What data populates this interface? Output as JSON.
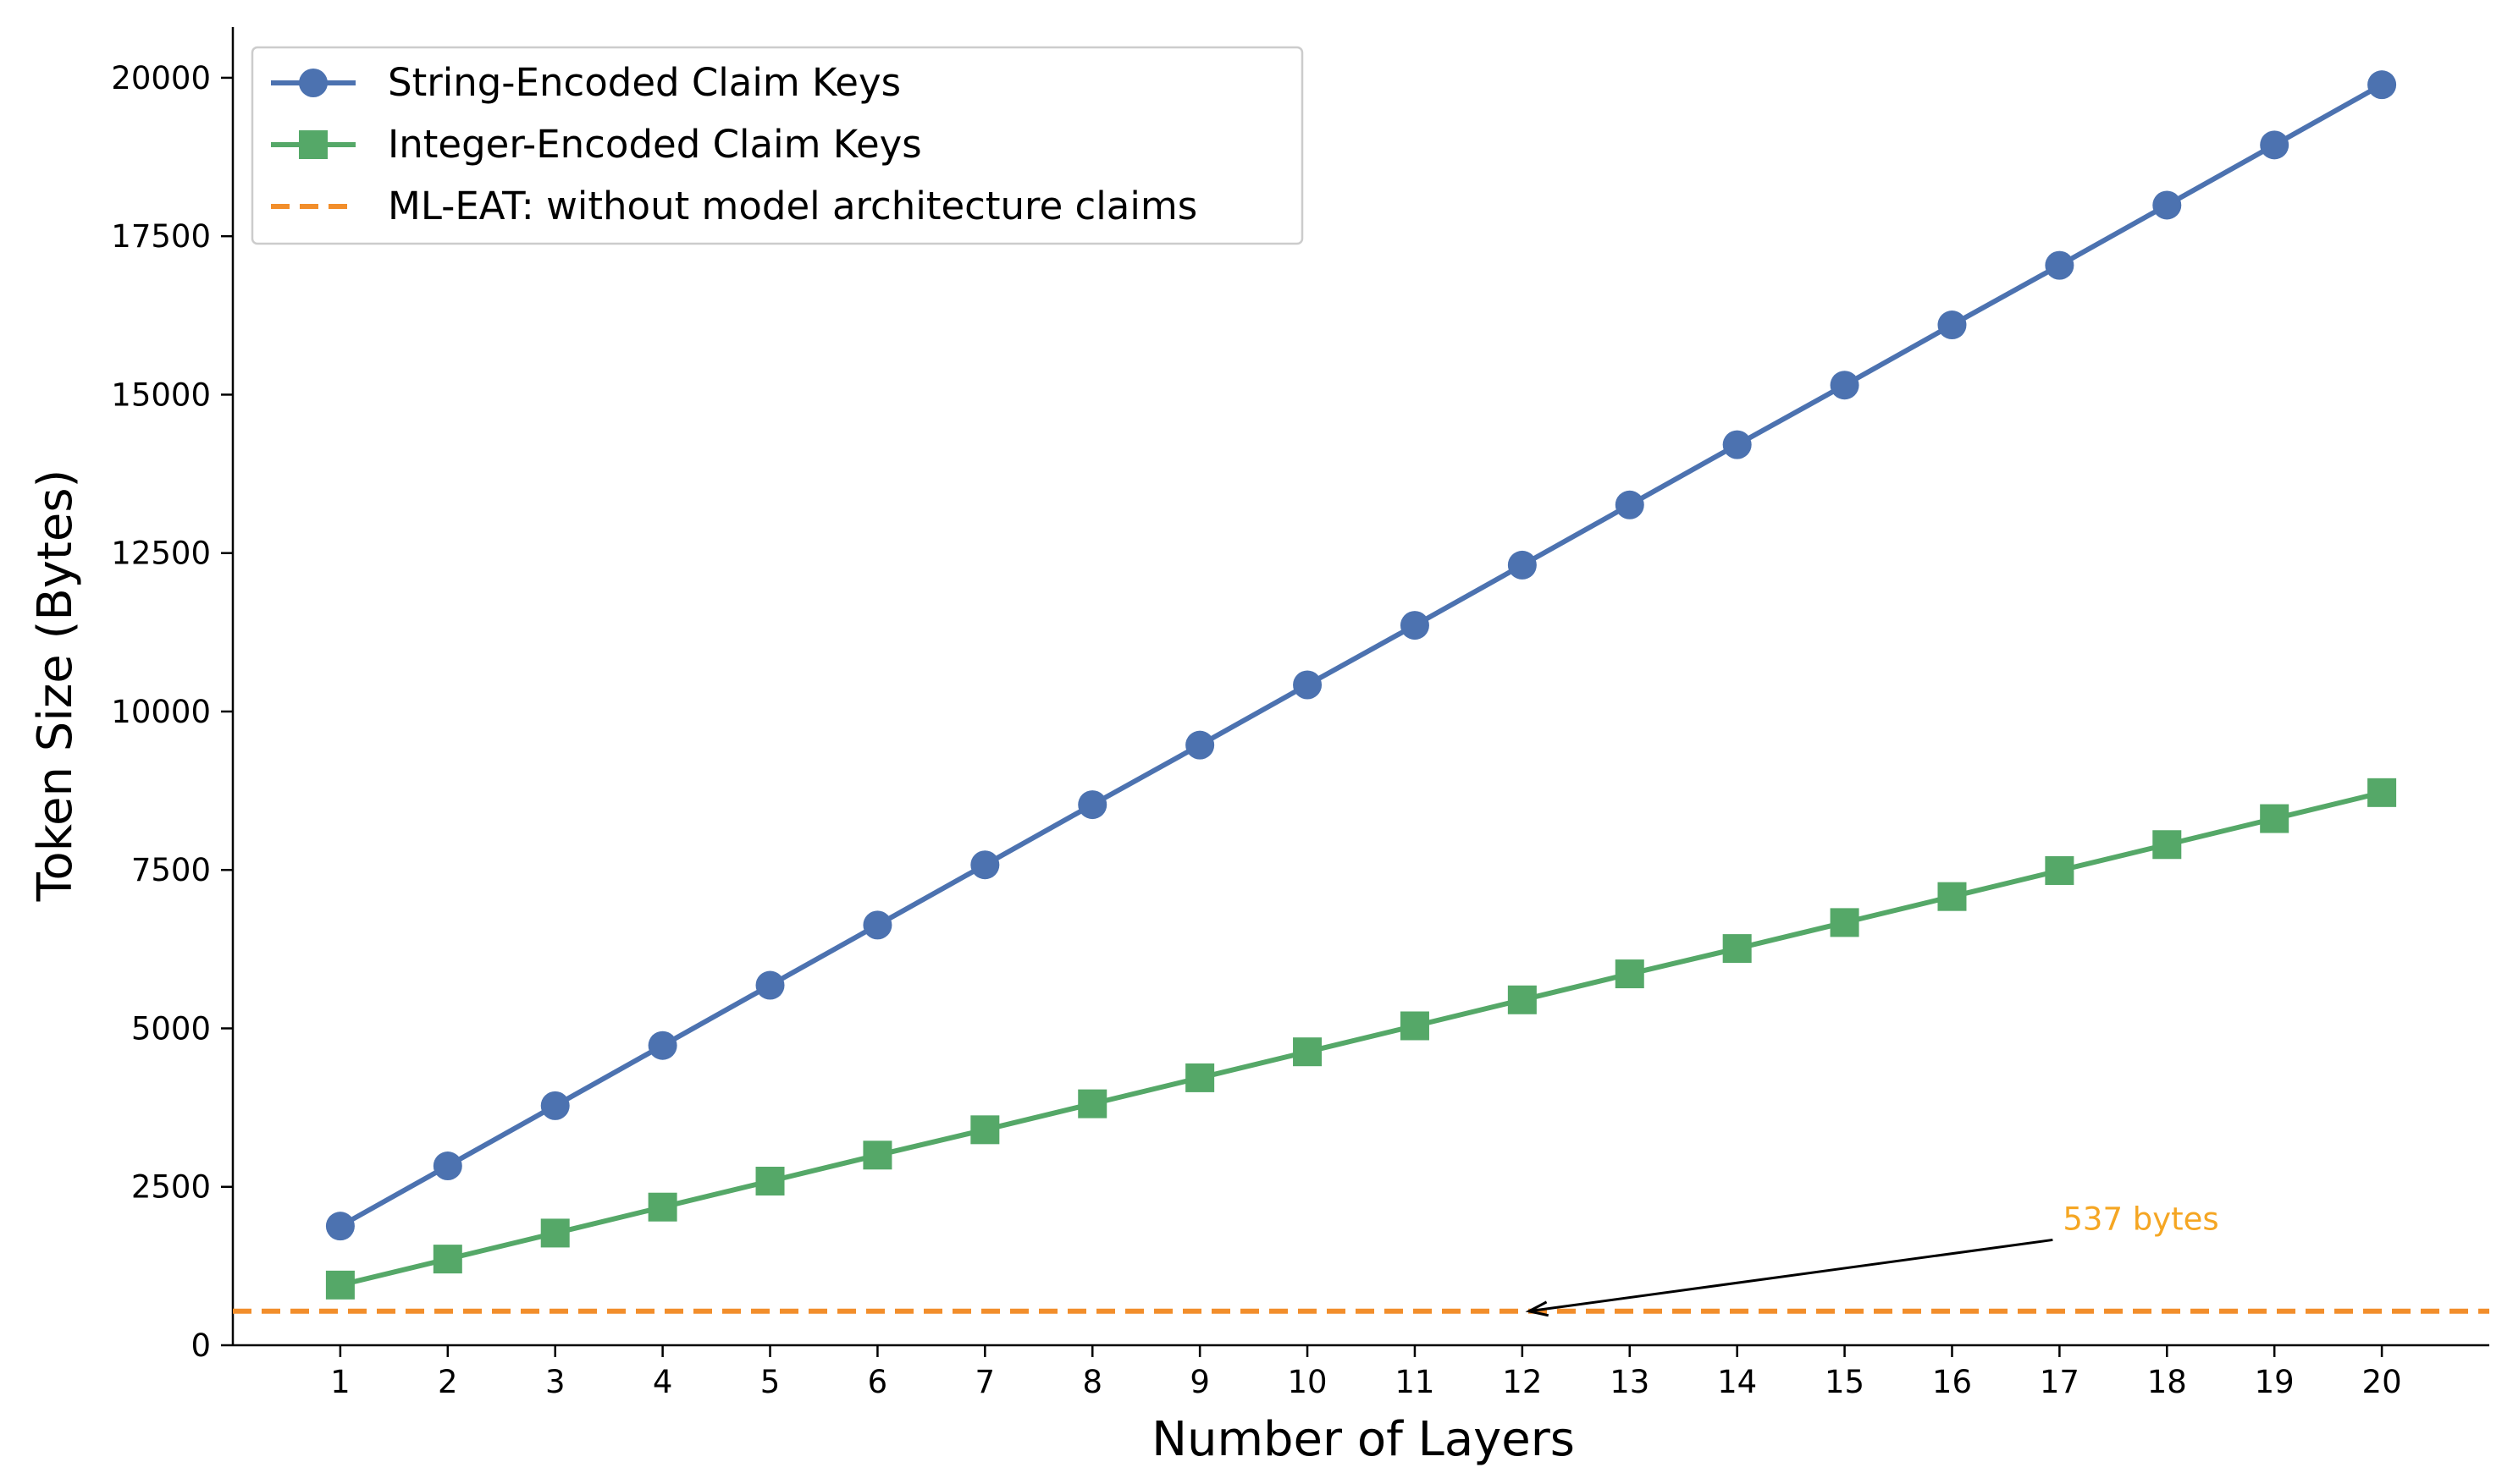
{
  "chart_data": {
    "type": "line",
    "title": "",
    "xlabel": "Number of Layers",
    "ylabel": "Token Size (Bytes)",
    "x": [
      1,
      2,
      3,
      4,
      5,
      6,
      7,
      8,
      9,
      10,
      11,
      12,
      13,
      14,
      15,
      16,
      17,
      18,
      19,
      20
    ],
    "xlim": [
      0,
      21
    ],
    "ylim": [
      0,
      20800
    ],
    "y_ticks": [
      0,
      2500,
      5000,
      7500,
      10000,
      12500,
      15000,
      17500,
      20000
    ],
    "x_ticks": [
      1,
      2,
      3,
      4,
      5,
      6,
      7,
      8,
      9,
      10,
      11,
      12,
      13,
      14,
      15,
      16,
      17,
      18,
      19,
      20
    ],
    "grid": false,
    "legend_position": "top-left",
    "series": [
      {
        "name": "String-Encoded Claim Keys",
        "marker": "circle",
        "color": "#4c72b0",
        "values": [
          1880,
          2830,
          3780,
          4730,
          5680,
          6630,
          7580,
          8530,
          9470,
          10420,
          11360,
          12310,
          13260,
          14210,
          15150,
          16100,
          17040,
          17990,
          18940,
          19890
        ]
      },
      {
        "name": "Integer-Encoded Claim Keys",
        "marker": "square",
        "color": "#55a868",
        "values": [
          950,
          1360,
          1770,
          2180,
          2590,
          3000,
          3400,
          3810,
          4220,
          4630,
          5040,
          5450,
          5860,
          6260,
          6670,
          7080,
          7490,
          7900,
          8310,
          8720
        ]
      }
    ],
    "reference_line": {
      "name": "ML-EAT: without model architecture claims",
      "value": 537,
      "color": "#f28e2b",
      "style": "dashed"
    },
    "annotation": {
      "text": "537 bytes",
      "color": "#f5a623",
      "point_x": 12,
      "point_y": 537,
      "text_x": 17,
      "text_y": 1850
    }
  }
}
